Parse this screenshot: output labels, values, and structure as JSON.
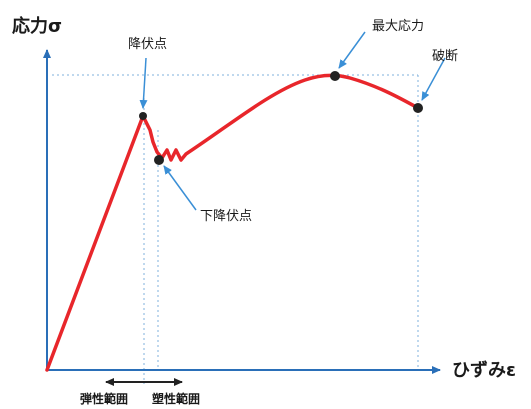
{
  "diagram": {
    "y_axis_label": "応力σ",
    "x_axis_label": "ひずみε",
    "points": {
      "upper_yield": "降伏点",
      "lower_yield": "下降伏点",
      "max_stress": "最大応力",
      "fracture": "破断"
    },
    "ranges": {
      "elastic": "弾性範囲",
      "plastic": "塑性範囲"
    },
    "colors": {
      "curve": "#e8262b",
      "axis": "#2a6fb8",
      "arrow": "#3a8fd6",
      "guide": "#7fb1de",
      "marker": "#222222"
    }
  }
}
